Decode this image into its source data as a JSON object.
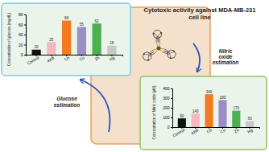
{
  "chart_data": [
    {
      "type": "bar",
      "title": "Cytotoxic activity against MDA-MB-231\ncell line",
      "categories": [
        "Control",
        "azdt",
        "Co",
        "Cu",
        "Zn",
        "Hg"
      ],
      "values": [
        10,
        25,
        68,
        55,
        62,
        18
      ],
      "colors": [
        "#111111",
        "#f4b8c1",
        "#f47920",
        "#9b8ec4",
        "#4caf50",
        "#c8c8c8"
      ],
      "ylabel": "Concentration of glucose (mg/dL)",
      "ylim": [
        0,
        80
      ],
      "yticks": [
        0,
        20,
        40,
        60,
        80
      ],
      "data_labels": true,
      "annotations": [
        "Glucose\nestimation"
      ]
    },
    {
      "type": "bar",
      "categories": [
        "Control",
        "azdt",
        "Co",
        "Cu",
        "Zn",
        "Hg"
      ],
      "values": [
        90,
        140,
        340,
        280,
        170,
        60
      ],
      "colors": [
        "#111111",
        "#f4b8c1",
        "#f47920",
        "#9b8ec4",
        "#4caf50",
        "#c8c8c8"
      ],
      "ylabel": "Concentration of Nitric oxide (µM)",
      "ylim": [
        0,
        400
      ],
      "yticks": [
        0,
        100,
        200,
        300,
        400
      ],
      "data_labels": true,
      "annotations": [
        "Nitric\noxide\nestimation"
      ]
    }
  ]
}
